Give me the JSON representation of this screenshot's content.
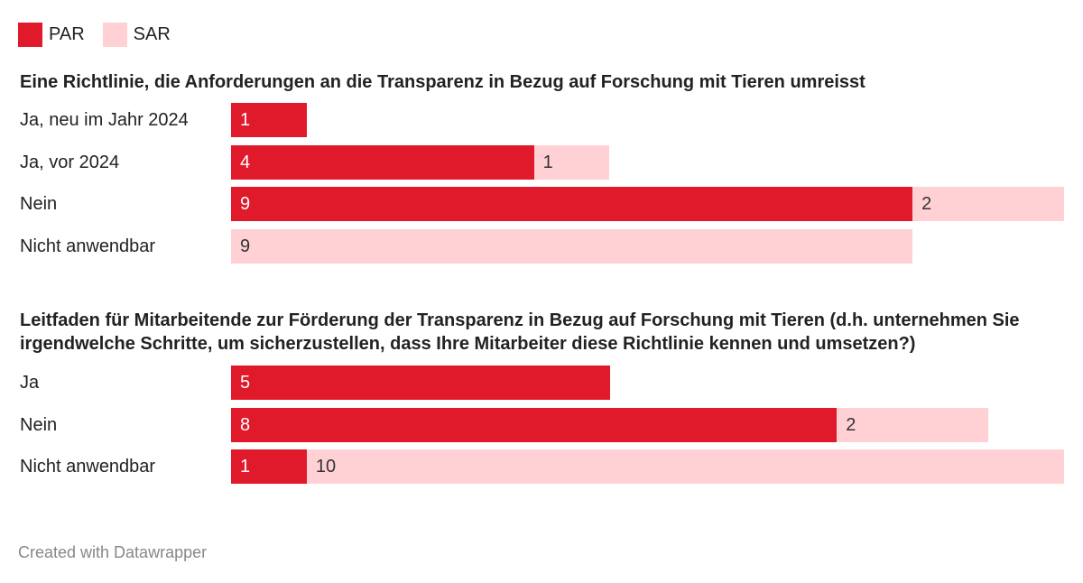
{
  "legend": [
    {
      "label": "PAR",
      "color": "#e01a2a"
    },
    {
      "label": "SAR",
      "color": "#ffd1d5"
    }
  ],
  "charts": [
    {
      "title": "Eine Richtlinie, die Anforderungen an die Transparenz in Bezug auf Forschung mit Tieren umreisst",
      "rows": [
        {
          "label": "Ja, neu im Jahr 2024",
          "par": 1,
          "sar": 0
        },
        {
          "label": "Ja, vor 2024",
          "par": 4,
          "sar": 1
        },
        {
          "label": "Nein",
          "par": 9,
          "sar": 2
        },
        {
          "label": "Nicht anwendbar",
          "par": 0,
          "sar": 9
        }
      ]
    },
    {
      "title": "Leitfaden für Mitarbeitende zur Förderung der Transparenz in Bezug auf Forschung mit Tieren (d.h. unternehmen Sie irgendwelche Schritte, um sicherzustellen, dass Ihre Mitarbeiter diese Richtlinie kennen und umsetzen?)",
      "rows": [
        {
          "label": "Ja",
          "par": 5,
          "sar": 0
        },
        {
          "label": "Nein",
          "par": 8,
          "sar": 2
        },
        {
          "label": "Nicht anwendbar",
          "par": 1,
          "sar": 10
        }
      ]
    }
  ],
  "chart_data": [
    {
      "type": "bar",
      "orientation": "horizontal",
      "stacked": true,
      "title": "Eine Richtlinie, die Anforderungen an die Transparenz in Bezug auf Forschung mit Tieren umreisst",
      "categories": [
        "Ja, neu im Jahr 2024",
        "Ja, vor 2024",
        "Nein",
        "Nicht anwendbar"
      ],
      "series": [
        {
          "name": "PAR",
          "values": [
            1,
            4,
            9,
            0
          ],
          "color": "#e01a2a"
        },
        {
          "name": "SAR",
          "values": [
            0,
            1,
            2,
            9
          ],
          "color": "#ffd1d5"
        }
      ],
      "xlim": [
        0,
        11
      ],
      "grid": false,
      "legend_position": "top-left"
    },
    {
      "type": "bar",
      "orientation": "horizontal",
      "stacked": true,
      "title": "Leitfaden für Mitarbeitende zur Förderung der Transparenz in Bezug auf Forschung mit Tieren (d.h. unternehmen Sie irgendwelche Schritte, um sicherzustellen, dass Ihre Mitarbeiter diese Richtlinie kennen und umsetzen?)",
      "categories": [
        "Ja",
        "Nein",
        "Nicht anwendbar"
      ],
      "series": [
        {
          "name": "PAR",
          "values": [
            5,
            8,
            1
          ],
          "color": "#e01a2a"
        },
        {
          "name": "SAR",
          "values": [
            0,
            2,
            10
          ],
          "color": "#ffd1d5"
        }
      ],
      "xlim": [
        0,
        11
      ],
      "grid": false,
      "legend_position": "top-left"
    }
  ],
  "footer": "Created with Datawrapper"
}
